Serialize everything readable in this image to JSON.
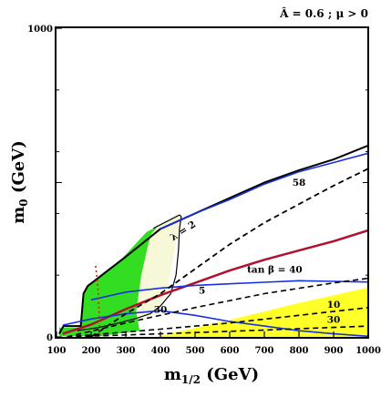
{
  "chart_data": {
    "type": "line",
    "title": "Â = 0.6 ; μ > 0",
    "xlabel": "m",
    "xlabel_sub": "1/2",
    "xlabel_unit": " (GeV)",
    "ylabel": "m",
    "ylabel_sub": "0",
    "ylabel_unit": " (GeV)",
    "xlim": [
      100,
      1000
    ],
    "ylim": [
      0,
      1000
    ],
    "x_ticks": [
      "100",
      "200",
      "300",
      "400",
      "500",
      "600",
      "700",
      "800",
      "900",
      "1000"
    ],
    "y_ticks": [
      "0",
      "1000"
    ],
    "grid": false,
    "regions": [
      {
        "name": "green-bright",
        "color": "#33dd22",
        "points": [
          [
            108,
            3
          ],
          [
            108,
            30
          ],
          [
            168,
            30
          ],
          [
            172,
            90
          ],
          [
            178,
            140
          ],
          [
            190,
            165
          ],
          [
            200,
            176
          ],
          [
            240,
            212
          ],
          [
            290,
            255
          ],
          [
            360,
            340
          ],
          [
            380,
            352
          ],
          [
            390,
            355
          ],
          [
            375,
            335
          ],
          [
            365,
            300
          ],
          [
            345,
            200
          ],
          [
            330,
            80
          ],
          [
            340,
            20
          ],
          [
            230,
            3
          ],
          [
            108,
            3
          ]
        ]
      },
      {
        "name": "green-pale",
        "color": "#f6f8d8",
        "points": [
          [
            390,
            355
          ],
          [
            450,
            400
          ],
          [
            455,
            395
          ],
          [
            450,
            340
          ],
          [
            440,
            270
          ],
          [
            420,
            160
          ],
          [
            400,
            100
          ],
          [
            380,
            70
          ],
          [
            345,
            60
          ],
          [
            330,
            80
          ],
          [
            345,
            200
          ],
          [
            365,
            300
          ],
          [
            375,
            335
          ],
          [
            390,
            355
          ]
        ]
      },
      {
        "name": "yellow",
        "color": "#ffff2a",
        "points": [
          [
            400,
            3
          ],
          [
            600,
            55
          ],
          [
            800,
            110
          ],
          [
            1000,
            160
          ],
          [
            1000,
            0
          ],
          [
            400,
            0
          ]
        ]
      }
    ],
    "series": [
      {
        "name": "boundary",
        "color": "#000000",
        "width": 2,
        "dash": "",
        "points": [
          [
            108,
            10
          ],
          [
            120,
            35
          ],
          [
            170,
            35
          ],
          [
            178,
            140
          ],
          [
            190,
            165
          ],
          [
            210,
            182
          ],
          [
            300,
            260
          ],
          [
            400,
            350
          ],
          [
            500,
            400
          ],
          [
            600,
            450
          ],
          [
            700,
            500
          ],
          [
            800,
            540
          ],
          [
            900,
            575
          ],
          [
            1000,
            620
          ]
        ]
      },
      {
        "name": "cosmology-edge",
        "color": "#000000",
        "width": 1.2,
        "dash": "",
        "points": [
          [
            380,
            352
          ],
          [
            455,
            395
          ],
          [
            460,
            390
          ],
          [
            455,
            350
          ],
          [
            452,
            280
          ],
          [
            445,
            200
          ],
          [
            430,
            140
          ],
          [
            400,
            100
          ],
          [
            370,
            75
          ],
          [
            330,
            60
          ],
          [
            280,
            45
          ],
          [
            220,
            30
          ],
          [
            160,
            20
          ]
        ]
      },
      {
        "name": "tan-beta-58",
        "color": "#1830e0",
        "width": 1.6,
        "dash": "",
        "points": [
          [
            400,
            350
          ],
          [
            500,
            400
          ],
          [
            600,
            445
          ],
          [
            700,
            495
          ],
          [
            800,
            535
          ],
          [
            900,
            565
          ],
          [
            1000,
            595
          ]
        ]
      },
      {
        "name": "tan-beta-40-red",
        "color": "#b01030",
        "width": 2.5,
        "dash": "",
        "points": [
          [
            118,
            10
          ],
          [
            200,
            40
          ],
          [
            300,
            90
          ],
          [
            400,
            135
          ],
          [
            500,
            175
          ],
          [
            600,
            215
          ],
          [
            700,
            250
          ],
          [
            800,
            280
          ],
          [
            900,
            310
          ],
          [
            1000,
            345
          ]
        ]
      },
      {
        "name": "tan-beta-5",
        "color": "#1830e0",
        "width": 1.6,
        "dash": "",
        "points": [
          [
            200,
            120
          ],
          [
            300,
            145
          ],
          [
            400,
            158
          ],
          [
            500,
            167
          ],
          [
            600,
            172
          ],
          [
            700,
            177
          ],
          [
            800,
            182
          ],
          [
            900,
            180
          ],
          [
            1000,
            178
          ]
        ]
      },
      {
        "name": "tan-beta-10-blue",
        "color": "#1830e0",
        "width": 1.6,
        "dash": "",
        "points": [
          [
            118,
            38
          ],
          [
            200,
            58
          ],
          [
            300,
            75
          ],
          [
            400,
            85
          ],
          [
            500,
            70
          ],
          [
            600,
            50
          ],
          [
            700,
            35
          ],
          [
            800,
            20
          ],
          [
            900,
            10
          ],
          [
            1000,
            2
          ]
        ]
      },
      {
        "name": "lambda-2",
        "color": "#000000",
        "width": 1.8,
        "dash": "6,4",
        "points": [
          [
            200,
            0
          ],
          [
            300,
            75
          ],
          [
            400,
            140
          ],
          [
            500,
            220
          ],
          [
            600,
            300
          ],
          [
            700,
            370
          ],
          [
            800,
            430
          ],
          [
            900,
            490
          ],
          [
            1000,
            545
          ]
        ]
      },
      {
        "name": "dash-40",
        "color": "#000000",
        "width": 1.6,
        "dash": "6,4",
        "points": [
          [
            130,
            0
          ],
          [
            300,
            45
          ],
          [
            500,
            95
          ],
          [
            700,
            140
          ],
          [
            900,
            175
          ],
          [
            1000,
            190
          ]
        ]
      },
      {
        "name": "dash-5",
        "color": "#000000",
        "width": 1.6,
        "dash": "6,4",
        "points": [
          [
            130,
            0
          ],
          [
            400,
            25
          ],
          [
            600,
            45
          ],
          [
            800,
            70
          ],
          [
            1000,
            95
          ]
        ]
      },
      {
        "name": "dash-30",
        "color": "#000000",
        "width": 1.6,
        "dash": "6,4",
        "points": [
          [
            130,
            0
          ],
          [
            400,
            10
          ],
          [
            700,
            22
          ],
          [
            1000,
            35
          ]
        ]
      },
      {
        "name": "higgs-red-dotted",
        "color": "#dd2200",
        "width": 1.6,
        "dash": "2,3",
        "points": [
          [
            213,
            230
          ],
          [
            216,
            200
          ],
          [
            220,
            150
          ],
          [
            222,
            100
          ],
          [
            224,
            50
          ],
          [
            226,
            0
          ]
        ]
      }
    ],
    "annotations": [
      {
        "text": "58",
        "x": 800,
        "y": 490
      },
      {
        "text": "λ = 2",
        "x": 470,
        "y": 335
      },
      {
        "text": "tan β = 40",
        "x": 730,
        "y": 208
      },
      {
        "text": "5",
        "x": 520,
        "y": 140
      },
      {
        "text": "30",
        "x": 400,
        "y": 78
      },
      {
        "text": "10",
        "x": 900,
        "y": 95
      },
      {
        "text": "30",
        "x": 900,
        "y": 45
      }
    ]
  }
}
